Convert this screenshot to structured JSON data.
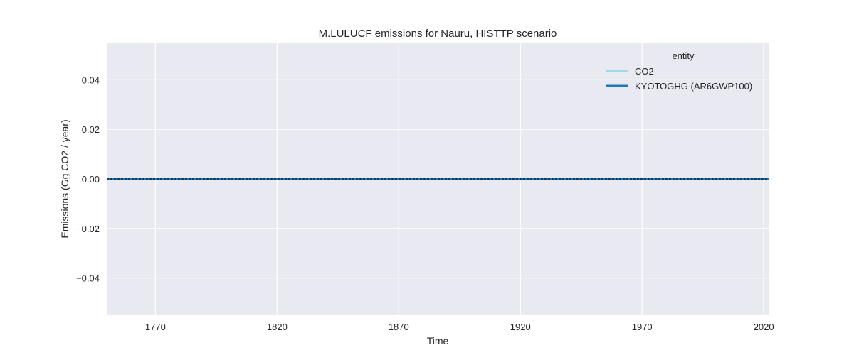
{
  "chart_data": {
    "type": "line",
    "title": "M.LULUCF emissions for Nauru, HISTTP scenario",
    "xlabel": "Time",
    "ylabel": "Emissions (Gg CO2 / year)",
    "xlim": [
      1750,
      2022
    ],
    "ylim": [
      -0.055,
      0.055
    ],
    "xticks": [
      1770,
      1820,
      1870,
      1920,
      1970,
      2020
    ],
    "yticks": [
      -0.04,
      -0.02,
      0.0,
      0.02,
      0.04
    ],
    "ytick_labels": [
      "−0.04",
      "−0.02",
      "0.00",
      "0.02",
      "0.04"
    ],
    "grid": true,
    "legend": {
      "title": "entity",
      "position": "top-right"
    },
    "series": [
      {
        "name": "CO2",
        "color": "#9dd9e6",
        "x": [
          1750,
          2022
        ],
        "y": [
          0,
          0
        ]
      },
      {
        "name": "KYOTOGHG (AR6GWP100)",
        "color": "#1f77b4",
        "x": [
          1750,
          2022
        ],
        "y": [
          0,
          0
        ]
      }
    ],
    "reference_line": {
      "y": 0,
      "style": "dashed",
      "color": "#000000"
    },
    "colors": {
      "axes_bg": "#e9e9f1",
      "grid": "#ffffff"
    }
  }
}
